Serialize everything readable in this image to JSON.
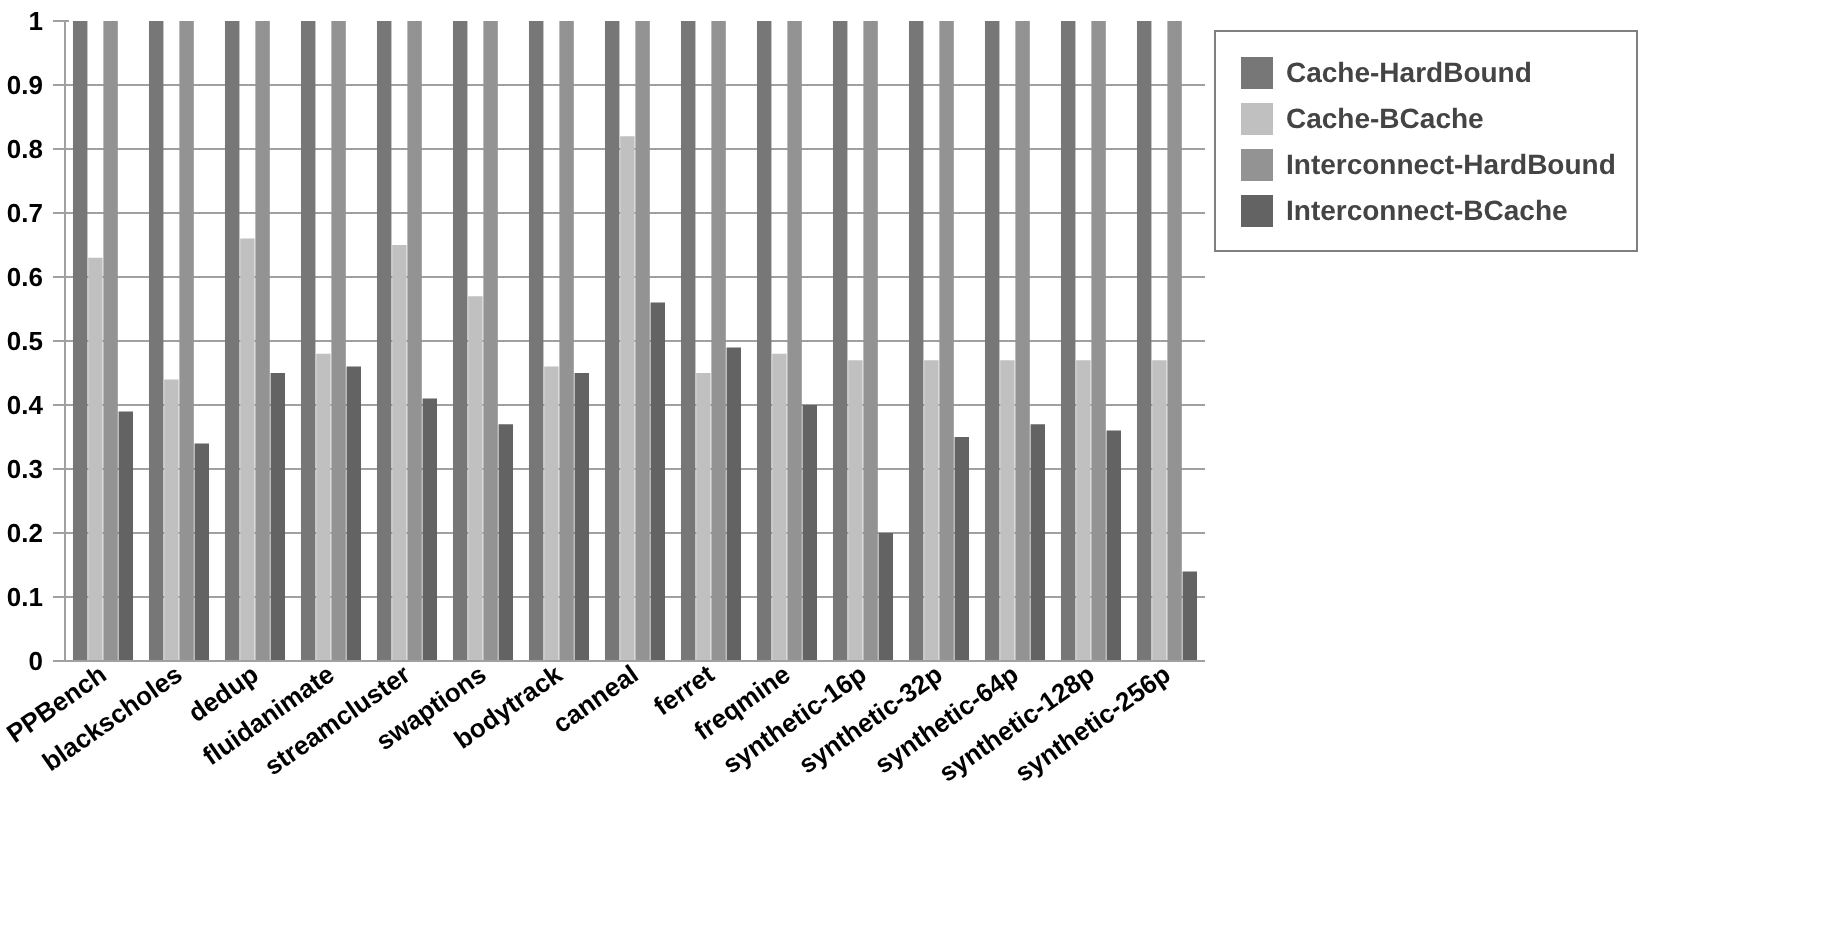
{
  "chart_data": {
    "type": "bar",
    "categories": [
      "PPBench",
      "blackscholes",
      "dedup",
      "fluidanimate",
      "streamcluster",
      "swaptions",
      "bodytrack",
      "canneal",
      "ferret",
      "freqmine",
      "synthetic-16p",
      "synthetic-32p",
      "synthetic-64p",
      "synthetic-128p",
      "synthetic-256p"
    ],
    "series": [
      {
        "name": "Cache-HardBound",
        "color": "#777777",
        "values": [
          1,
          1,
          1,
          1,
          1,
          1,
          1,
          1,
          1,
          1,
          1,
          1,
          1,
          1,
          1
        ]
      },
      {
        "name": "Cache-BCache",
        "color": "#c0c0c0",
        "values": [
          0.63,
          0.44,
          0.66,
          0.48,
          0.65,
          0.57,
          0.46,
          0.82,
          0.45,
          0.48,
          0.47,
          0.47,
          0.47,
          0.47,
          0.47
        ]
      },
      {
        "name": "Interconnect-HardBound",
        "color": "#939393",
        "values": [
          1,
          1,
          1,
          1,
          1,
          1,
          1,
          1,
          1,
          1,
          1,
          1,
          1,
          1,
          1
        ]
      },
      {
        "name": "Interconnect-BCache",
        "color": "#636363",
        "values": [
          0.39,
          0.34,
          0.45,
          0.46,
          0.41,
          0.37,
          0.45,
          0.56,
          0.49,
          0.4,
          0.2,
          0.35,
          0.37,
          0.36,
          0.14
        ]
      }
    ],
    "ylim": [
      0,
      1
    ],
    "yticks": [
      0,
      0.1,
      0.2,
      0.3,
      0.4,
      0.5,
      0.6,
      0.7,
      0.8,
      0.9,
      1
    ],
    "grid": "y",
    "legend": "top right"
  }
}
